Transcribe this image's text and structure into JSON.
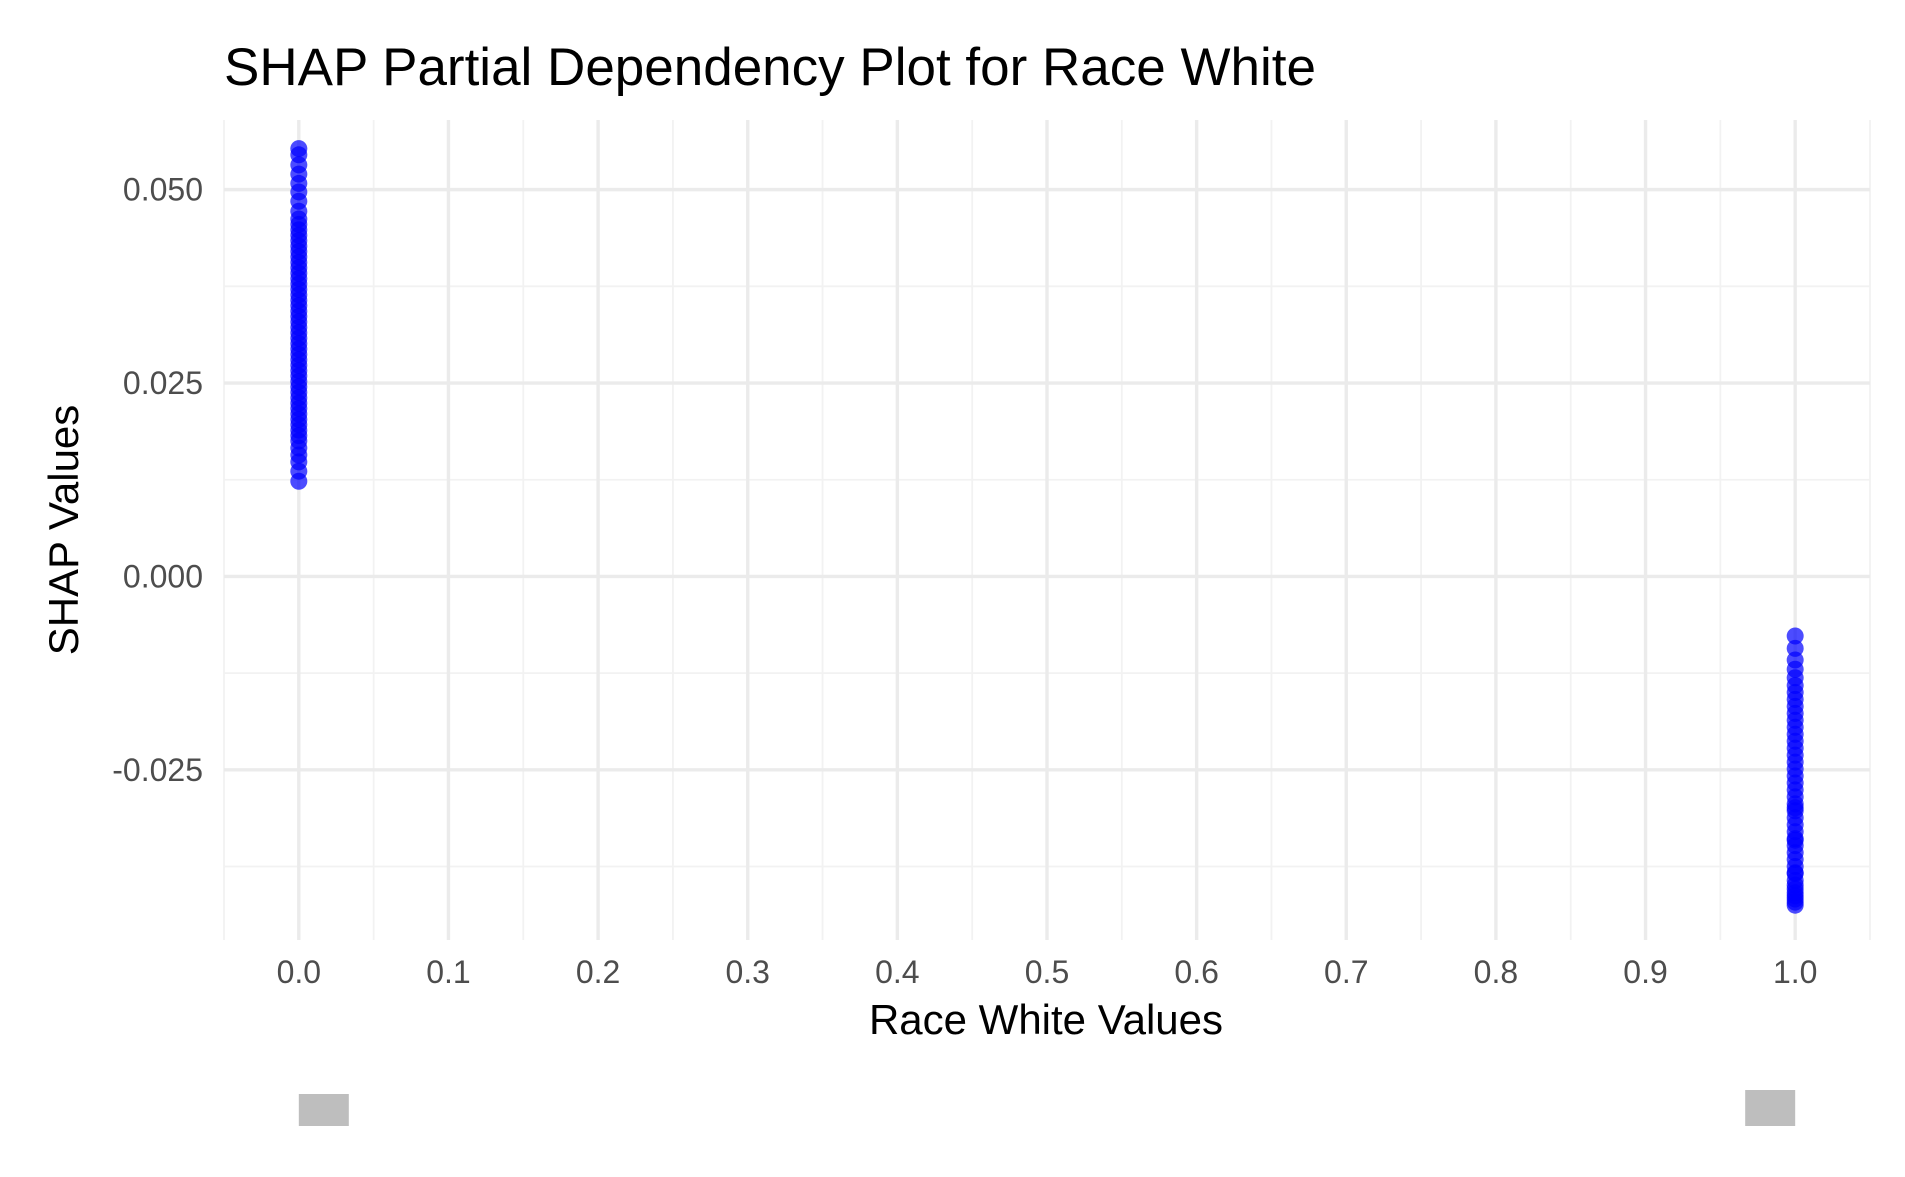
{
  "chart_data": {
    "type": "scatter",
    "title": "SHAP Partial Dependency Plot for Race White",
    "xlabel": "Race White Values",
    "ylabel": "SHAP Values",
    "xlim": [
      -0.05,
      1.05
    ],
    "ylim": [
      -0.047,
      0.059
    ],
    "x_ticks": [
      0.0,
      0.1,
      0.2,
      0.3,
      0.4,
      0.5,
      0.6,
      0.7,
      0.8,
      0.9,
      1.0
    ],
    "x_tick_labels": [
      "0.0",
      "0.1",
      "0.2",
      "0.3",
      "0.4",
      "0.5",
      "0.6",
      "0.7",
      "0.8",
      "0.9",
      "1.0"
    ],
    "y_ticks": [
      -0.025,
      0.0,
      0.025,
      0.05
    ],
    "y_tick_labels": [
      "-0.025",
      "0.000",
      "0.025",
      "0.050"
    ],
    "grid": true,
    "point_color": "#0000ff",
    "marginal_color": "#bebebe",
    "series": [
      {
        "x": [
          0,
          0,
          0,
          0,
          0,
          0,
          0,
          0,
          0,
          0,
          0,
          0,
          0,
          0,
          0,
          0,
          0,
          0,
          0,
          0,
          0,
          0,
          0,
          0,
          0,
          0,
          0,
          0,
          0,
          0,
          0,
          0,
          0,
          0,
          0,
          0,
          0,
          0,
          0,
          0,
          0,
          0,
          0,
          0,
          0,
          0,
          0,
          0,
          0,
          0,
          0,
          0,
          0,
          0,
          0
        ],
        "y": [
          0.0553,
          0.0545,
          0.0532,
          0.052,
          0.0508,
          0.0497,
          0.0485,
          0.0472,
          0.0462,
          0.0455,
          0.0448,
          0.0441,
          0.0434,
          0.0427,
          0.042,
          0.0413,
          0.0406,
          0.0399,
          0.0392,
          0.0385,
          0.0378,
          0.0371,
          0.0364,
          0.0357,
          0.035,
          0.0343,
          0.0336,
          0.0329,
          0.0322,
          0.0315,
          0.0308,
          0.0301,
          0.0294,
          0.0287,
          0.028,
          0.0273,
          0.0266,
          0.0259,
          0.0252,
          0.0245,
          0.0238,
          0.0231,
          0.0224,
          0.0217,
          0.021,
          0.0203,
          0.0196,
          0.0189,
          0.0182,
          0.0175,
          0.0166,
          0.0157,
          0.0148,
          0.0136,
          0.0123
        ]
      },
      {
        "x": [
          1,
          1,
          1,
          1,
          1,
          1,
          1,
          1,
          1,
          1,
          1,
          1,
          1,
          1,
          1,
          1,
          1,
          1,
          1,
          1,
          1,
          1,
          1,
          1,
          1,
          1,
          1,
          1,
          1,
          1,
          1,
          1,
          1,
          1,
          1,
          1,
          1,
          1,
          1,
          1,
          1,
          1,
          1,
          1
        ],
        "y": [
          -0.0077,
          -0.0093,
          -0.0108,
          -0.012,
          -0.0131,
          -0.0141,
          -0.015,
          -0.0159,
          -0.0168,
          -0.0177,
          -0.0186,
          -0.0195,
          -0.0204,
          -0.0213,
          -0.0222,
          -0.0231,
          -0.024,
          -0.0249,
          -0.0258,
          -0.0267,
          -0.0276,
          -0.0285,
          -0.0294,
          -0.0303,
          -0.0312,
          -0.0321,
          -0.033,
          -0.0339,
          -0.0348,
          -0.0357,
          -0.0366,
          -0.0375,
          -0.0384,
          -0.0393,
          -0.0399,
          -0.0404,
          -0.0409,
          -0.0413,
          -0.0417,
          -0.0421,
          -0.0425,
          -0.0383,
          -0.0341,
          -0.0299
        ]
      }
    ]
  }
}
